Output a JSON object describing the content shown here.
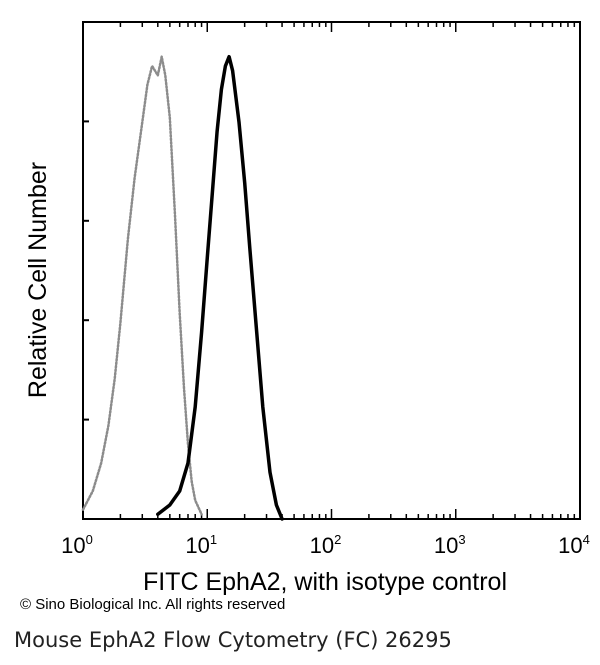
{
  "chart_data": {
    "type": "line",
    "title": "",
    "xlabel": "FITC EphA2, with isotype control",
    "ylabel": "Relative Cell Number",
    "xscale": "log",
    "xlim": [
      1,
      10000
    ],
    "ylim": [
      0,
      1
    ],
    "grid": false,
    "legend": "none",
    "x_ticks": [
      {
        "base": "10",
        "exp": "0",
        "value": 1
      },
      {
        "base": "10",
        "exp": "1",
        "value": 10
      },
      {
        "base": "10",
        "exp": "2",
        "value": 100
      },
      {
        "base": "10",
        "exp": "3",
        "value": 1000
      },
      {
        "base": "10",
        "exp": "4",
        "value": 10000
      }
    ],
    "series": [
      {
        "style": "dotted-gray",
        "color": "#8c8c8c",
        "x": [
          1.0,
          1.2,
          1.4,
          1.6,
          1.8,
          2.0,
          2.3,
          2.6,
          3.0,
          3.3,
          3.6,
          4.0,
          4.3,
          4.6,
          5.0,
          5.5,
          6.0,
          6.5,
          7.0,
          7.5,
          8.0,
          9.0
        ],
        "y": [
          0.02,
          0.06,
          0.12,
          0.2,
          0.3,
          0.42,
          0.6,
          0.73,
          0.85,
          0.93,
          0.97,
          0.95,
          0.99,
          0.95,
          0.86,
          0.65,
          0.44,
          0.28,
          0.16,
          0.08,
          0.04,
          0.01
        ]
      },
      {
        "style": "solid-black",
        "color": "#000000",
        "x": [
          4.0,
          5.0,
          6.0,
          7.0,
          8.0,
          9.0,
          10.0,
          11.0,
          12.0,
          13.0,
          14.0,
          15.0,
          16.0,
          18.0,
          20.0,
          22.0,
          25.0,
          28.0,
          32.0,
          36.0,
          40.0
        ],
        "y": [
          0.01,
          0.03,
          0.06,
          0.12,
          0.24,
          0.4,
          0.56,
          0.7,
          0.83,
          0.92,
          0.97,
          0.99,
          0.96,
          0.85,
          0.72,
          0.58,
          0.4,
          0.24,
          0.1,
          0.03,
          0.0
        ]
      }
    ]
  },
  "footer": {
    "copyright": "© Sino Biological Inc. All rights reserved",
    "caption": "Mouse EphA2 Flow Cytometry (FC) 26295"
  }
}
